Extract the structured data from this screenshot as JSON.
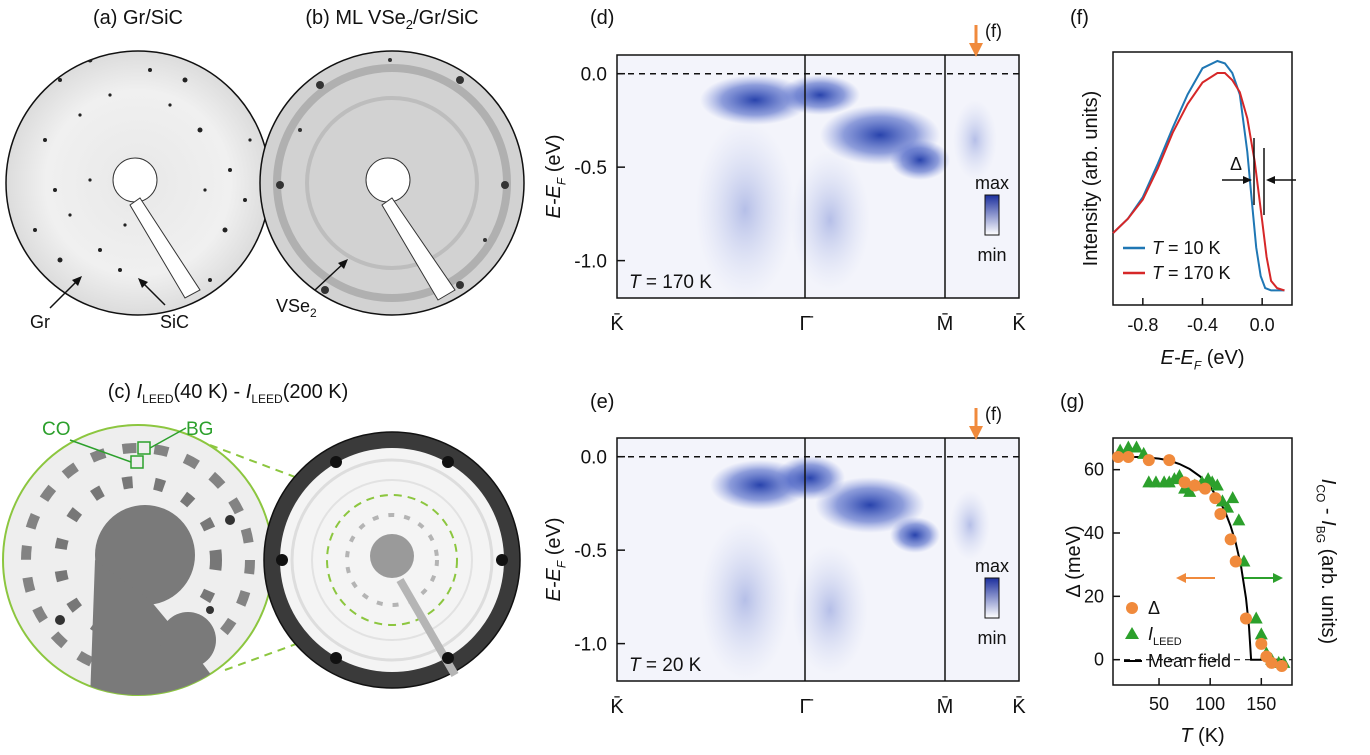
{
  "panels": {
    "a": {
      "title": "(a) Gr/SiC",
      "labels": [
        "Gr",
        "SiC"
      ]
    },
    "b": {
      "title_pre": "(b) ML VSe",
      "title_sub": "2",
      "title_post": "/Gr/SiC",
      "label_main": "VSe",
      "label_sub": "2"
    },
    "c": {
      "title_pre": "(c) ",
      "title_i1": "I",
      "title_sub1": "LEED",
      "title_mid": "(40 K) - ",
      "title_i2": "I",
      "title_sub2": "LEED",
      "title_post": "(200 K)",
      "co": "CO",
      "bg": "BG"
    },
    "d": {
      "tag": "(d)",
      "arrow_label": "(f)",
      "temp_pre": "T",
      "temp_post": " = 170 K",
      "cbar_max": "max",
      "cbar_min": "min"
    },
    "e": {
      "tag": "(e)",
      "arrow_label": "(f)",
      "temp_pre": "T",
      "temp_post": " = 20 K",
      "cbar_max": "max",
      "cbar_min": "min"
    },
    "arpes_axis": {
      "ylabel_pre": "E-E",
      "ylabel_sub": "F",
      "ylabel_post": " (eV)",
      "yticks": [
        "0.0",
        "-0.5",
        "-1.0"
      ],
      "xticks": [
        "K̄",
        "Γ̄",
        "M̄",
        "K̄"
      ]
    },
    "f": {
      "tag": "(f)",
      "delta": "Δ"
    },
    "g": {
      "tag": "(g)"
    }
  },
  "chart_data": [
    {
      "type": "line",
      "panel": "f",
      "xlabel_pre": "E-E",
      "xlabel_sub": "F",
      "xlabel_post": " (eV)",
      "ylabel": "Intensity (arb. units)",
      "xlim": [
        -1.0,
        0.2
      ],
      "xticks": [
        "-0.8",
        "-0.4",
        "0.0"
      ],
      "series": [
        {
          "name_pre": "T",
          "name_post": " = 10 K",
          "color": "#1f77b4",
          "x": [
            -1.0,
            -0.9,
            -0.8,
            -0.7,
            -0.6,
            -0.5,
            -0.4,
            -0.3,
            -0.25,
            -0.2,
            -0.15,
            -0.1,
            -0.07,
            -0.04,
            -0.01,
            0.02,
            0.06,
            0.1,
            0.15
          ],
          "y": [
            0.28,
            0.34,
            0.43,
            0.57,
            0.72,
            0.86,
            0.97,
            1.0,
            0.99,
            0.95,
            0.86,
            0.62,
            0.42,
            0.22,
            0.1,
            0.05,
            0.04,
            0.04,
            0.04
          ]
        },
        {
          "name_pre": "T",
          "name_post": " = 170 K",
          "color": "#d62728",
          "x": [
            -1.0,
            -0.9,
            -0.8,
            -0.7,
            -0.6,
            -0.5,
            -0.4,
            -0.3,
            -0.25,
            -0.2,
            -0.15,
            -0.1,
            -0.05,
            0.0,
            0.03,
            0.06,
            0.1,
            0.15
          ],
          "y": [
            0.28,
            0.34,
            0.42,
            0.55,
            0.7,
            0.82,
            0.91,
            0.95,
            0.95,
            0.92,
            0.87,
            0.76,
            0.58,
            0.33,
            0.18,
            0.08,
            0.05,
            0.04
          ]
        }
      ]
    },
    {
      "type": "scatter",
      "panel": "g",
      "xlabel_pre": "T",
      "xlabel_post": " (K)",
      "ylabel": "Δ (meV)",
      "ylabel_right_i1": "I",
      "ylabel_right_sub1": "CO",
      "ylabel_right_mid": " - ",
      "ylabel_right_i2": "I",
      "ylabel_right_sub2": "BG",
      "ylabel_right_post": " (arb. units)",
      "xlim": [
        5,
        180
      ],
      "ylim": [
        -8,
        70
      ],
      "xticks": [
        50,
        100,
        150
      ],
      "yticks": [
        0,
        20,
        40,
        60
      ],
      "series": [
        {
          "name": "Δ",
          "color": "#f08a3c",
          "marker": "circle",
          "x": [
            10,
            20,
            40,
            60,
            75,
            85,
            95,
            105,
            110,
            120,
            125,
            135,
            150,
            155,
            160,
            170
          ],
          "y": [
            64,
            64,
            63,
            63,
            56,
            55,
            54,
            51,
            46,
            38,
            31,
            13,
            5,
            1,
            -1,
            -2
          ]
        },
        {
          "name_pre": "I",
          "name_sub": "LEED",
          "color": "#2ca02c",
          "marker": "triangle",
          "x": [
            12,
            20,
            28,
            35,
            40,
            47,
            55,
            60,
            65,
            70,
            75,
            80,
            85,
            92,
            98,
            102,
            107,
            112,
            117,
            122,
            128,
            133,
            145,
            150,
            155,
            160,
            167,
            172
          ],
          "y": [
            66,
            67,
            67,
            65,
            56,
            56,
            56,
            56,
            57,
            58,
            54,
            53,
            55,
            56,
            57,
            56,
            55,
            50,
            48,
            51,
            44,
            31,
            13,
            8,
            2,
            0,
            -1,
            -1
          ]
        },
        {
          "name": "Mean field",
          "color": "#000000",
          "marker": "line",
          "x": [
            10,
            20,
            30,
            40,
            50,
            60,
            70,
            80,
            90,
            100,
            110,
            115,
            120,
            125,
            130,
            135,
            138,
            140,
            141,
            142,
            143,
            144,
            145,
            170
          ],
          "y": [
            64,
            64,
            64,
            63.8,
            63.5,
            62.9,
            61.8,
            60.2,
            57.9,
            54.6,
            49.7,
            46.4,
            42.2,
            36.9,
            29.8,
            19.4,
            10.4,
            0,
            0,
            0,
            0,
            0,
            0,
            0
          ]
        }
      ]
    }
  ]
}
